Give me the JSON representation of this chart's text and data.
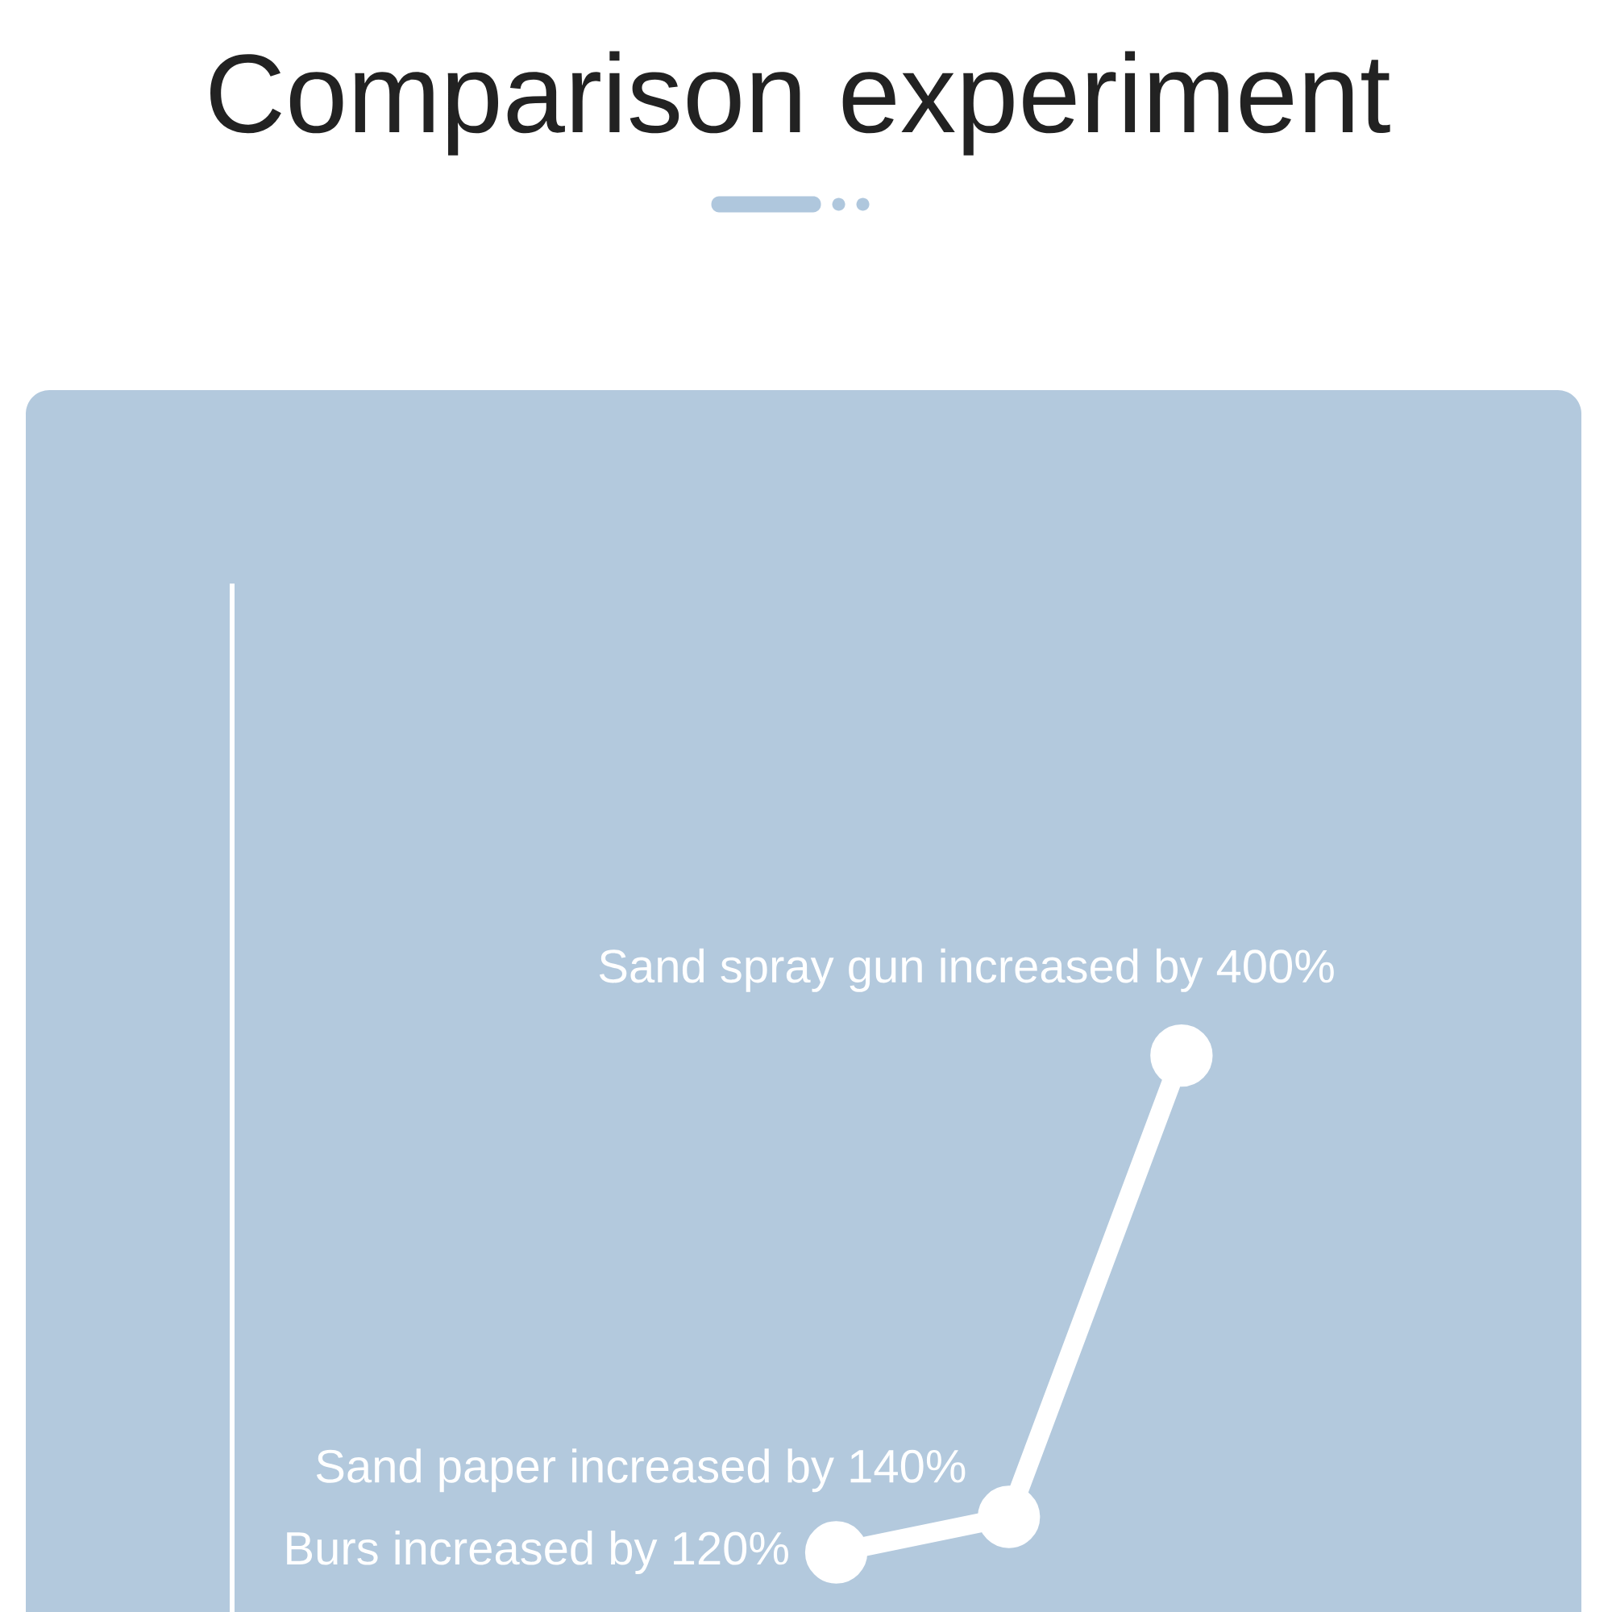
{
  "chart_data": {
    "type": "line",
    "title": "Comparison experiment",
    "categories": [
      null,
      null,
      null
    ],
    "values": [
      120,
      140,
      400
    ],
    "value_labels": [
      "Burs increased by 120%",
      "Sand paper increased by 140%",
      "Sand spray gun increased by 400%"
    ],
    "color": "#ffffff",
    "marker": "circle",
    "line_style": "solid",
    "tick_labels": false
  }
}
